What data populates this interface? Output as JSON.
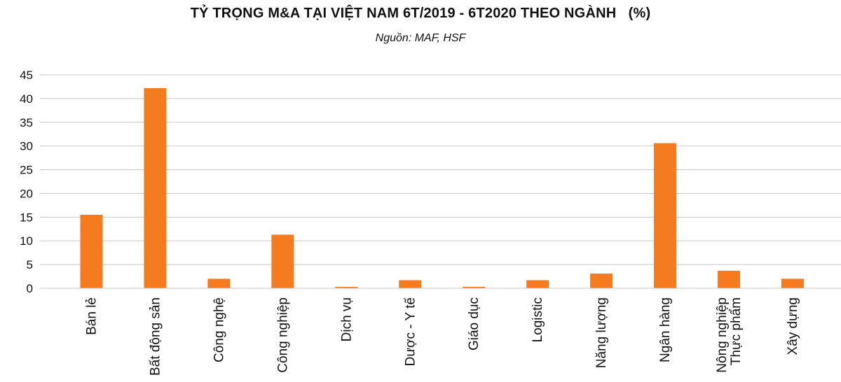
{
  "chart_data": {
    "type": "bar",
    "title": "TỶ TRỌNG M&A TẠI VIỆT NAM 6T/2019 - 6T2020 THEO NGÀNH   (%)",
    "subtitle": "Nguồn: MAF, HSF",
    "categories": [
      [
        "Bán lẻ"
      ],
      [
        "Bất động sản"
      ],
      [
        "Công nghệ"
      ],
      [
        "Công nghiệp"
      ],
      [
        "Dịch vụ"
      ],
      [
        "Dược - Y tế"
      ],
      [
        "Giáo dục"
      ],
      [
        "Logistic"
      ],
      [
        "Năng lượng"
      ],
      [
        "Ngân hàng"
      ],
      [
        "Nông nghiệp",
        "Thực phẩm"
      ],
      [
        "Xây dựng"
      ]
    ],
    "values": [
      15.5,
      42.2,
      2.0,
      11.3,
      0.3,
      1.7,
      0.3,
      1.7,
      3.1,
      30.6,
      3.7,
      2.0
    ],
    "yticks": [
      0,
      5,
      10,
      15,
      20,
      25,
      30,
      35,
      40,
      45
    ],
    "ylim": [
      0,
      45
    ],
    "grid": true,
    "bar_color": "#f47b20",
    "grid_color": "#c8c8c8"
  }
}
